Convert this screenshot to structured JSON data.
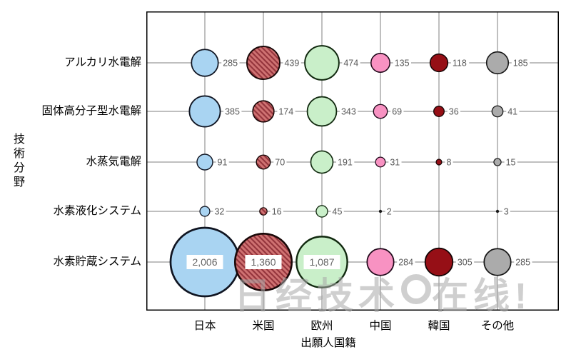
{
  "watermark": {
    "left_text": "日经技术",
    "right_text": "在线!",
    "color": "#a8a8a8"
  },
  "chart_data": {
    "type": "bubble",
    "title": "",
    "xlabel": "出願人国籍",
    "ylabel": "技術分野",
    "x_categories": [
      "日本",
      "米国",
      "欧州",
      "中国",
      "韓国",
      "その他"
    ],
    "y_categories": [
      "アルカリ水電解",
      "固体高分子型水電解",
      "水蒸気電解",
      "水素液化システム",
      "水素貯蔵システム"
    ],
    "series": [
      {
        "name": "アルカリ水電解",
        "values": [
          285,
          439,
          474,
          135,
          118,
          185
        ]
      },
      {
        "name": "固体高分子型水電解",
        "values": [
          385,
          174,
          343,
          69,
          36,
          41
        ]
      },
      {
        "name": "水蒸気電解",
        "values": [
          91,
          70,
          191,
          31,
          8,
          15
        ]
      },
      {
        "name": "水素液化システム",
        "values": [
          32,
          16,
          45,
          2,
          null,
          3
        ]
      },
      {
        "name": "水素貯蔵システム",
        "values": [
          2006,
          1360,
          1087,
          284,
          305,
          285
        ]
      }
    ],
    "bubble_scale": "radius proportional to sqrt(value)",
    "grid": true,
    "gridline_color": "#7f7f7f",
    "border_color": "#000000",
    "value_label_color": "#595959",
    "inner_label_values": [
      "2,006",
      "1,360",
      "1,087"
    ],
    "column_colors": [
      {
        "country": "日本",
        "fill": "#a9d4f2",
        "stroke": "#101522",
        "pattern": "solid"
      },
      {
        "country": "米国",
        "fill": "#cf7272",
        "stroke": "#1a0808",
        "pattern": "diagonal-hatch",
        "hatch_color": "#94343c"
      },
      {
        "country": "欧州",
        "fill": "#c9efc9",
        "stroke": "#11290f",
        "pattern": "solid"
      },
      {
        "country": "中国",
        "fill": "#f892c2",
        "stroke": "#20081a",
        "pattern": "solid"
      },
      {
        "country": "韓国",
        "fill": "#960f16",
        "stroke": "#120404",
        "pattern": "solid"
      },
      {
        "country": "その他",
        "fill": "#ababab",
        "stroke": "#161616",
        "pattern": "solid"
      }
    ]
  }
}
